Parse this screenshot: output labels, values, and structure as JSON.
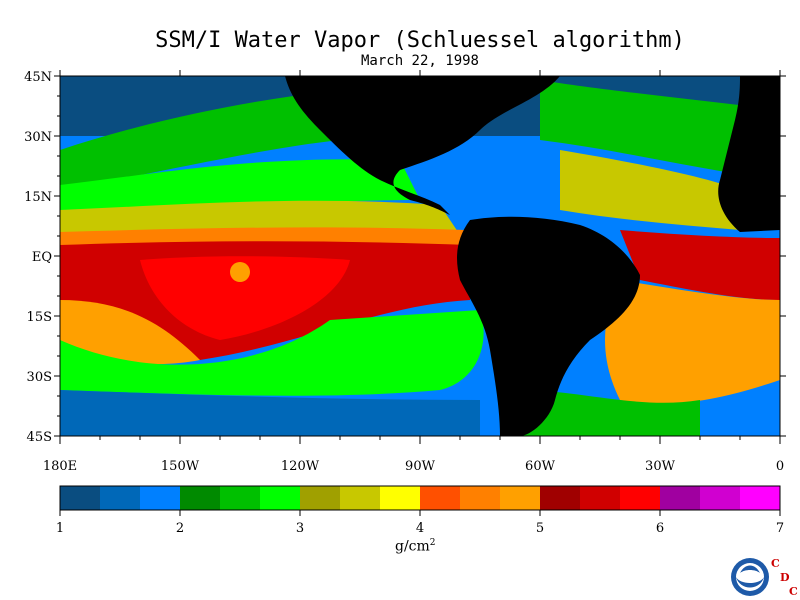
{
  "title": "SSM/I Water Vapor (Schluessel algorithm)",
  "date": "March 22, 1998",
  "map": {
    "lat_labels": [
      "45N",
      "30N",
      "15N",
      "EQ",
      "15S",
      "30S",
      "45S"
    ],
    "lon_labels": [
      "180E",
      "150W",
      "120W",
      "90W",
      "60W",
      "30W",
      "0"
    ],
    "ocean_colors": {
      "dark_blue": "#0a4d80",
      "mid_blue": "#0068b8",
      "blue": "#0080ff",
      "dark_green": "#008a00",
      "green": "#00c000",
      "bright_green": "#00ff00",
      "olive": "#a0a000",
      "yellow_olive": "#c8c800",
      "yellow": "#ffff00",
      "orange_red": "#ff5000",
      "orange": "#ff8000",
      "light_orange": "#ffa000",
      "dark_red": "#a00000",
      "red": "#d00000",
      "bright_red": "#ff0000",
      "purple": "#a000a0",
      "magenta": "#d000d0",
      "pink": "#ff00ff"
    },
    "land_color": "#000000"
  },
  "colorbar": {
    "colors": [
      "#0a4d80",
      "#0068b8",
      "#0080ff",
      "#008a00",
      "#00c000",
      "#00ff00",
      "#a0a000",
      "#c8c800",
      "#ffff00",
      "#ff5000",
      "#ff8000",
      "#ffa000",
      "#a00000",
      "#d00000",
      "#ff0000",
      "#a000a0",
      "#d000d0",
      "#ff00ff"
    ],
    "tick_labels": [
      "1",
      "2",
      "3",
      "4",
      "5",
      "6",
      "7"
    ],
    "unit_label": "g/cm",
    "unit_exp": "2"
  },
  "logo": {
    "name": "NOAA",
    "letters": [
      "C",
      "D",
      "C"
    ]
  }
}
